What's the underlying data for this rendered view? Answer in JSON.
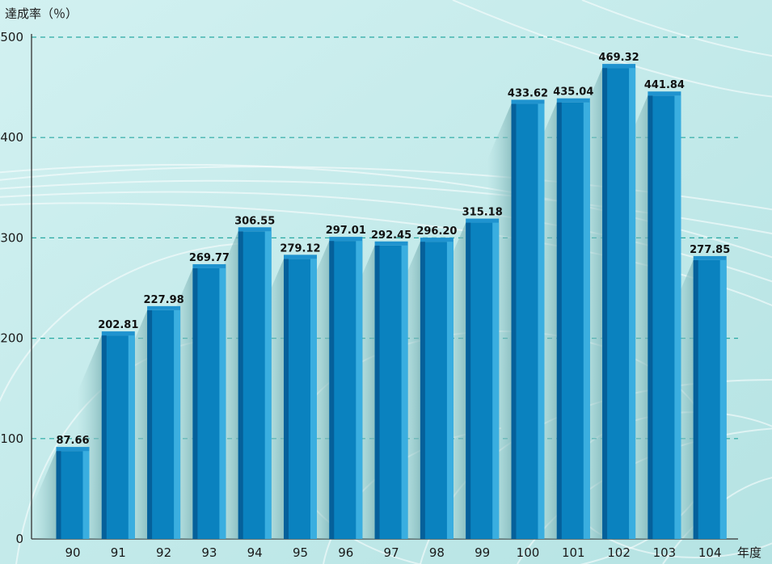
{
  "chart_data": {
    "type": "bar",
    "categories": [
      "90",
      "91",
      "92",
      "93",
      "94",
      "95",
      "96",
      "97",
      "98",
      "99",
      "100",
      "101",
      "102",
      "103",
      "104"
    ],
    "values": [
      87.66,
      202.81,
      227.98,
      269.77,
      306.55,
      279.12,
      297.01,
      292.45,
      296.2,
      315.18,
      433.62,
      435.04,
      469.32,
      441.84,
      277.85
    ],
    "value_labels": [
      "87.66",
      "202.81",
      "227.98",
      "269.77",
      "306.55",
      "279.12",
      "297.01",
      "292.45",
      "296.20",
      "315.18",
      "433.62",
      "435.04",
      "469.32",
      "441.84",
      "277.85"
    ],
    "ylabel": "達成率（％）",
    "xlabel": "年度",
    "ylim": [
      0,
      500
    ],
    "yticks": [
      0,
      100,
      200,
      300,
      400,
      500
    ],
    "grid": true,
    "colors": {
      "bar_front": "#0a82bf",
      "bar_light": "#3aaee0",
      "bar_dark": "#05609a",
      "bar_top": "#1f93cf",
      "grid": "#2aa9a3",
      "axis": "#333333",
      "background": "#c2e9e9"
    }
  }
}
